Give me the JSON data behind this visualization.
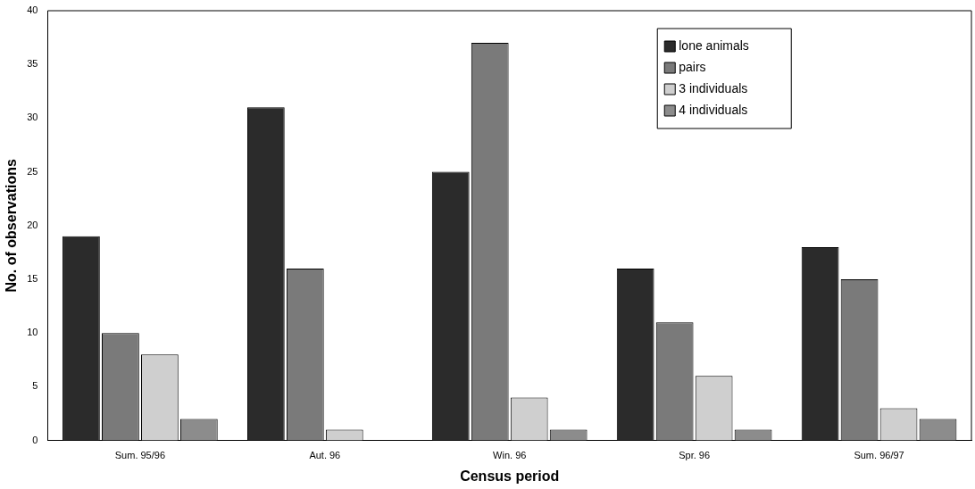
{
  "chart_data": {
    "type": "bar",
    "xlabel": "Census period",
    "ylabel": "No. of observations",
    "categories": [
      "Sum. 95/96",
      "Aut. 96",
      "Win. 96",
      "Spr. 96",
      "Sum. 96/97"
    ],
    "series": [
      {
        "name": "lone animals",
        "color": "#2b2b2b",
        "values": [
          19,
          31,
          25,
          16,
          18
        ]
      },
      {
        "name": "pairs",
        "color": "#7a7a7a",
        "values": [
          10,
          16,
          37,
          11,
          15
        ]
      },
      {
        "name": "3 individuals",
        "color": "#cfcfcf",
        "values": [
          8,
          1,
          4,
          6,
          3
        ]
      },
      {
        "name": "4 individuals",
        "color": "#8c8c8c",
        "values": [
          2,
          0,
          1,
          1,
          2
        ]
      }
    ],
    "ylim": [
      0,
      40
    ],
    "yticks": [
      0,
      5,
      10,
      15,
      20,
      25,
      30,
      35,
      40
    ],
    "grid": false,
    "legend": "top right"
  }
}
